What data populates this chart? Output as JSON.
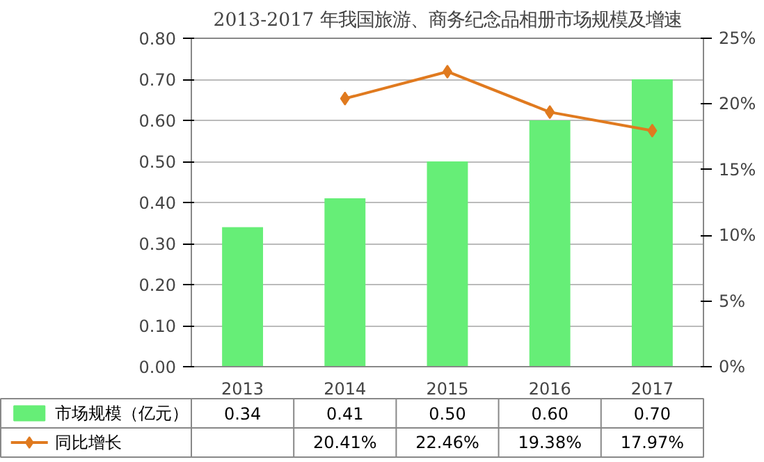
{
  "chart_data": {
    "type": "bar",
    "title": "2013-2017 年我国旅游、商务纪念品相册市场规模及增速",
    "categories": [
      "2013",
      "2014",
      "2015",
      "2016",
      "2017"
    ],
    "series": [
      {
        "name": "市场规模（亿元）",
        "color": "#66ee77",
        "values": [
          0.34,
          0.41,
          0.5,
          0.6,
          0.7
        ],
        "value_labels": [
          "0.34",
          "0.41",
          "0.50",
          "0.60",
          "0.70"
        ]
      },
      {
        "name": "同比增长",
        "type": "line",
        "axis": "y2",
        "marker": "diamond",
        "color": "#e07a1f",
        "values": [
          null,
          20.41,
          22.46,
          19.38,
          17.97
        ],
        "value_labels": [
          null,
          "20.41%",
          "22.46%",
          "19.38%",
          "17.97%"
        ]
      }
    ],
    "ylim": [
      0,
      0.8
    ],
    "yticks": [
      {
        "value": 0,
        "label": "0.00"
      },
      {
        "value": 0.1,
        "label": "0.10"
      },
      {
        "value": 0.2,
        "label": "0.20"
      },
      {
        "value": 0.3,
        "label": "0.30"
      },
      {
        "value": 0.4,
        "label": "0.40"
      },
      {
        "value": 0.5,
        "label": "0.50"
      },
      {
        "value": 0.6,
        "label": "0.60"
      },
      {
        "value": 0.7,
        "label": "0.70"
      },
      {
        "value": 0.8,
        "label": "0.80"
      }
    ],
    "y2lim": [
      0,
      25
    ],
    "y2ticks": [
      {
        "value": 0,
        "label": "0%"
      },
      {
        "value": 5,
        "label": "5%"
      },
      {
        "value": 10,
        "label": "10%"
      },
      {
        "value": 15,
        "label": "15%"
      },
      {
        "value": 20,
        "label": "20%"
      },
      {
        "value": 25,
        "label": "25%"
      }
    ],
    "grid": "y",
    "legend": "bottom"
  }
}
